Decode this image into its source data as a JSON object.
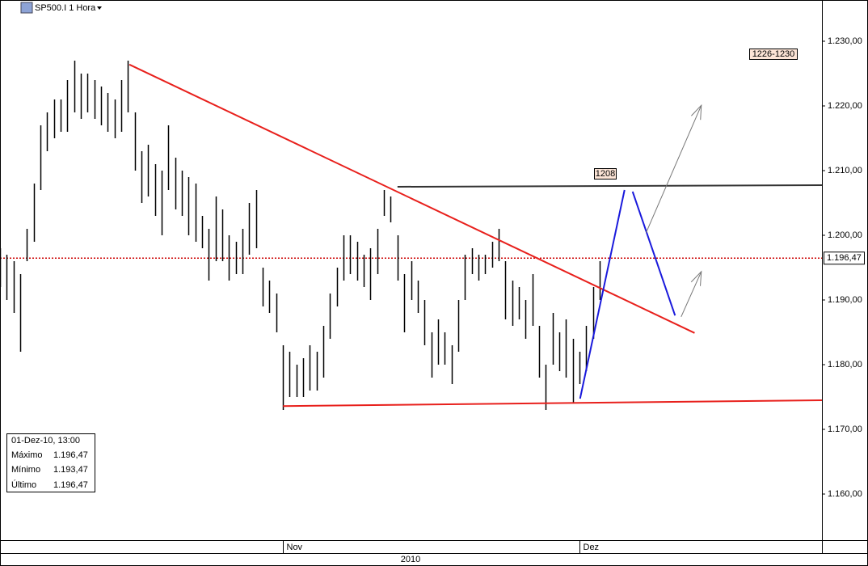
{
  "chart_data": {
    "type": "ohlc",
    "title": "SP500.I 1 Hora",
    "xlim": [
      0,
      122
    ],
    "xticks": [
      {
        "value": 42,
        "label": "Nov"
      },
      {
        "value": 86,
        "label": "Dez"
      }
    ],
    "year_label": "2010",
    "ylim": [
      1152.875,
      1236.375
    ],
    "yticks": [
      {
        "value": 1160,
        "label": "1.160,00"
      },
      {
        "value": 1170,
        "label": "1.170,00"
      },
      {
        "value": 1180,
        "label": "1.180,00"
      },
      {
        "value": 1190,
        "label": "1.190,00"
      },
      {
        "value": 1200,
        "label": "1.200,00"
      },
      {
        "value": 1210,
        "label": "1.210,00"
      },
      {
        "value": 1220,
        "label": "1.220,00"
      },
      {
        "value": 1230,
        "label": "1.230,00"
      }
    ],
    "bar_color": "#000000",
    "high": [
      1198,
      1197,
      1196,
      1194,
      1201,
      1208,
      1217,
      1219,
      1221,
      1221,
      1224,
      1227,
      1225,
      1225,
      1224,
      1223,
      1222,
      1221,
      1224,
      1227,
      1219,
      1213,
      1214,
      1211,
      1210,
      1217,
      1212,
      1210,
      1209,
      1208,
      1203,
      1201,
      1206,
      1204,
      1200,
      1199,
      1201,
      1205,
      1207,
      1195,
      1193,
      1191,
      1183,
      1182,
      1180,
      1181,
      1183,
      1182,
      1186,
      1191,
      1195,
      1200,
      1200,
      1199,
      1197,
      1198,
      1201,
      1207,
      1206,
      1200,
      1194,
      1196,
      1193,
      1190,
      1185,
      1187,
      1185,
      1183,
      1190,
      1197,
      1198,
      1197,
      1197,
      1199,
      1201,
      1196,
      1193,
      1192,
      1190,
      1194,
      1186,
      1180,
      1188,
      1185,
      1187,
      1184,
      1182,
      1186,
      1192,
      1196
    ],
    "low": [
      1192,
      1190,
      1188,
      1182,
      1196,
      1199,
      1207,
      1213,
      1215,
      1216,
      1216,
      1219,
      1218,
      1219,
      1218,
      1217,
      1216,
      1215,
      1216,
      1219,
      1210,
      1205,
      1206,
      1203,
      1200,
      1207,
      1204,
      1203,
      1200,
      1199,
      1198,
      1193,
      1196,
      1196,
      1193,
      1194,
      1194,
      1197,
      1198,
      1189,
      1188,
      1185,
      1173,
      1175,
      1175,
      1175,
      1176,
      1176,
      1178,
      1184,
      1189,
      1193,
      1194,
      1193,
      1192,
      1190,
      1194,
      1203,
      1202,
      1193,
      1185,
      1190,
      1188,
      1183,
      1178,
      1180,
      1180,
      1177,
      1182,
      1190,
      1194,
      1193,
      1194,
      1195,
      1196,
      1187,
      1186,
      1187,
      1184,
      1186,
      1178,
      1173,
      1180,
      1179,
      1178,
      1174,
      1177,
      1179,
      1184,
      1190
    ],
    "last_price": {
      "value": 1196.47,
      "label": "1.196,47"
    },
    "last_price_color": "#cc0000",
    "drawings": [
      {
        "color": "#e8201c",
        "points": [
          [
            19.2,
            1226.4
          ],
          [
            103.1,
            1184.9
          ]
        ]
      },
      {
        "color": "#e8201c",
        "points": [
          [
            42,
            1173.6
          ],
          [
            122,
            1174.5
          ]
        ]
      },
      {
        "color": "#333333",
        "points": [
          [
            59,
            1207.5
          ],
          [
            122,
            1207.75
          ]
        ]
      },
      {
        "color": "#1a1adc",
        "points": [
          [
            86.1,
            1174.75
          ],
          [
            92.7,
            1207
          ]
        ]
      },
      {
        "color": "#1a1adc",
        "points": [
          [
            93.9,
            1206.75
          ],
          [
            100.2,
            1187.6
          ]
        ]
      },
      {
        "color": "#777777",
        "arrow": true,
        "points": [
          [
            95.9,
            1200.4
          ],
          [
            104.1,
            1220.1
          ]
        ]
      },
      {
        "color": "#777777",
        "arrow": true,
        "points": [
          [
            101.1,
            1187.4
          ],
          [
            104.1,
            1194.4
          ]
        ]
      }
    ],
    "annotations": [
      "1208",
      "1226-1230"
    ],
    "info": {
      "date": "01-Dez-10, 13:00",
      "rows": [
        {
          "name": "Máximo",
          "value": "1.196,47"
        },
        {
          "name": "Mínimo",
          "value": "1.193,47"
        },
        {
          "name": "Último",
          "value": "1.196,47"
        }
      ]
    }
  }
}
